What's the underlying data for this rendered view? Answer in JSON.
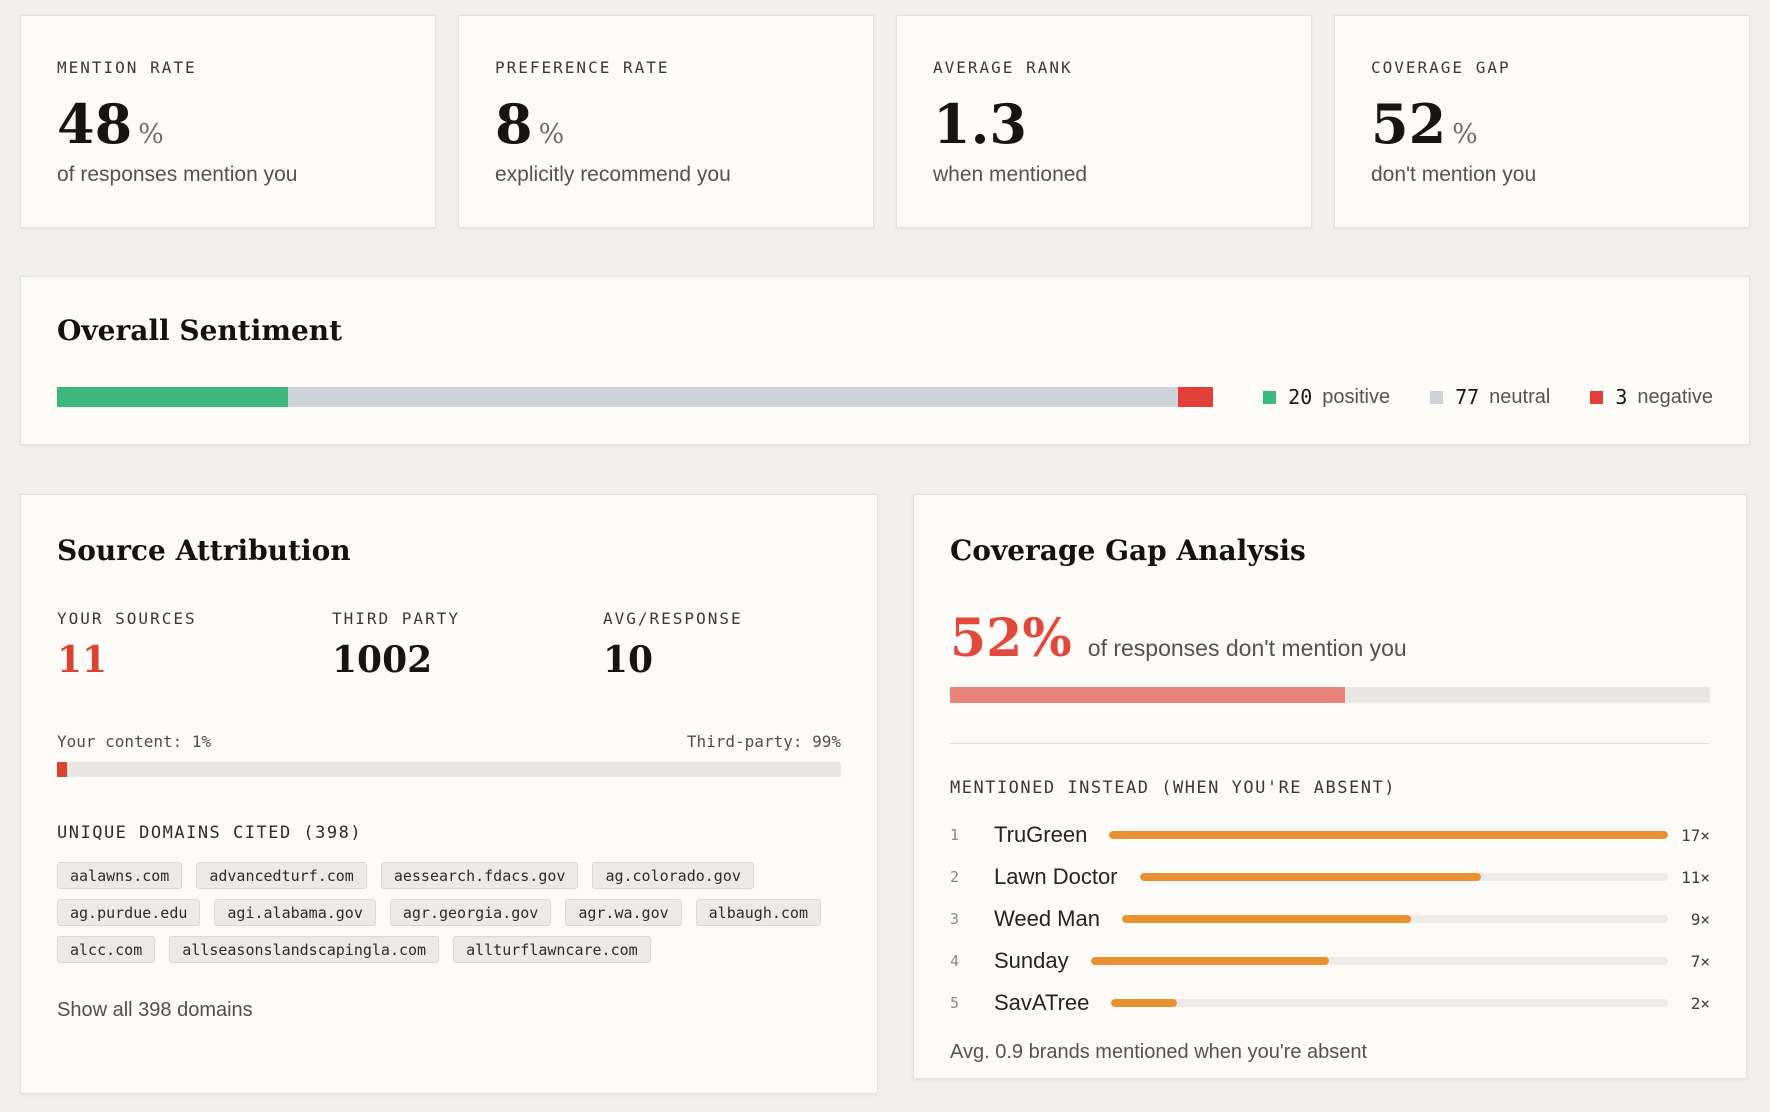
{
  "colors": {
    "positive_green": "#3db87c",
    "neutral_gray": "#ced2d9",
    "negative_red": "#e23f38",
    "accent_red": "#d9432f",
    "gap_red": "#e0493c",
    "gap_pink": "#e9847d",
    "competitor_orange": "#e8912e"
  },
  "stat_cards": [
    {
      "label": "MENTION RATE",
      "value": "48",
      "suffix": "%",
      "description": "of responses mention you"
    },
    {
      "label": "PREFERENCE RATE",
      "value": "8",
      "suffix": "%",
      "description": "explicitly recommend you"
    },
    {
      "label": "AVERAGE RANK",
      "value": "1.3",
      "suffix": "",
      "description": "when mentioned"
    },
    {
      "label": "COVERAGE GAP",
      "value": "52",
      "suffix": "%",
      "description": "don't mention you"
    }
  ],
  "sentiment": {
    "title": "Overall Sentiment",
    "segments": [
      {
        "name": "positive",
        "count": 20,
        "pct": 20,
        "color": "#3db87c"
      },
      {
        "name": "neutral",
        "count": 77,
        "pct": 77,
        "color": "#ced2d9"
      },
      {
        "name": "negative",
        "count": 3,
        "pct": 3,
        "color": "#e23f38"
      }
    ]
  },
  "source_attribution": {
    "title": "Source Attribution",
    "stats": [
      {
        "label": "YOUR SOURCES",
        "value": "11"
      },
      {
        "label": "THIRD PARTY",
        "value": "1002"
      },
      {
        "label": "AVG/RESPONSE",
        "value": "10"
      }
    ],
    "ratio": {
      "left_label": "Your content: 1%",
      "right_label": "Third-party: 99%",
      "your_pct": 1.3,
      "fill_color": "#d9432f"
    },
    "domains_heading": "UNIQUE DOMAINS CITED (398)",
    "domains": [
      "aalawns.com",
      "advancedturf.com",
      "aessearch.fdacs.gov",
      "ag.colorado.gov",
      "ag.purdue.edu",
      "agi.alabama.gov",
      "agr.georgia.gov",
      "agr.wa.gov",
      "albaugh.com",
      "alcc.com",
      "allseasonslandscapingla.com",
      "allturflawncare.com"
    ],
    "show_all_label": "Show all 398 domains"
  },
  "coverage_gap": {
    "title": "Coverage Gap Analysis",
    "stat_value": "52%",
    "stat_text": "of responses don't mention you",
    "bar_pct": 52,
    "bar_color": "#e9847d",
    "mentioned_heading": "MENTIONED INSTEAD (WHEN YOU'RE ABSENT)",
    "competitors": [
      {
        "rank": "1",
        "name": "TruGreen",
        "count": 17,
        "count_label": "17×",
        "pct": 100,
        "color": "#e8912e"
      },
      {
        "rank": "2",
        "name": "Lawn Doctor",
        "count": 11,
        "count_label": "11×",
        "pct": 64.7,
        "color": "#e8912e"
      },
      {
        "rank": "3",
        "name": "Weed Man",
        "count": 9,
        "count_label": "9×",
        "pct": 52.9,
        "color": "#e8912e"
      },
      {
        "rank": "4",
        "name": "Sunday",
        "count": 7,
        "count_label": "7×",
        "pct": 41.2,
        "color": "#e8912e"
      },
      {
        "rank": "5",
        "name": "SavATree",
        "count": 2,
        "count_label": "2×",
        "pct": 11.8,
        "color": "#e8912e"
      }
    ],
    "footer": "Avg. 0.9 brands mentioned when you're absent"
  }
}
